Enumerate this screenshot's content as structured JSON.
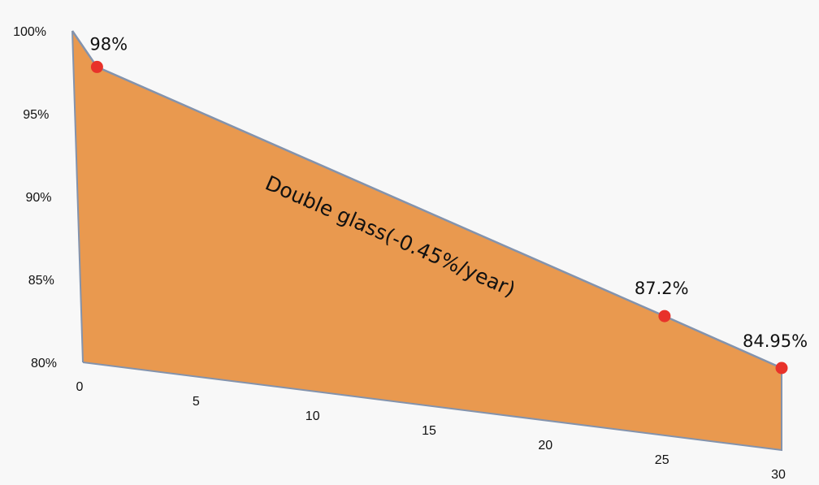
{
  "chart_data": {
    "type": "area",
    "title": "",
    "xlabel": "",
    "ylabel": "",
    "x_ticks": [
      "0",
      "5",
      "10",
      "15",
      "20",
      "25",
      "30"
    ],
    "y_ticks": [
      "80%",
      "85%",
      "90%",
      "95%",
      "100%"
    ],
    "xlim": [
      0,
      30
    ],
    "ylim": [
      80,
      100
    ],
    "grid": false,
    "legend": "none",
    "series": [
      {
        "annotation": "Double glass(-0.45%/year)",
        "x": [
          0,
          1,
          25,
          30
        ],
        "values": [
          100,
          98,
          87.2,
          84.95
        ],
        "color": "#e9994f",
        "line_color": "#8393ad"
      }
    ],
    "markers": [
      {
        "x": 1,
        "y": 98,
        "label": "98%"
      },
      {
        "x": 25,
        "y": 87.2,
        "label": "87.2%"
      },
      {
        "x": 30,
        "y": 84.95,
        "label": "84.95%"
      }
    ],
    "marker_color": "#e8322a"
  }
}
